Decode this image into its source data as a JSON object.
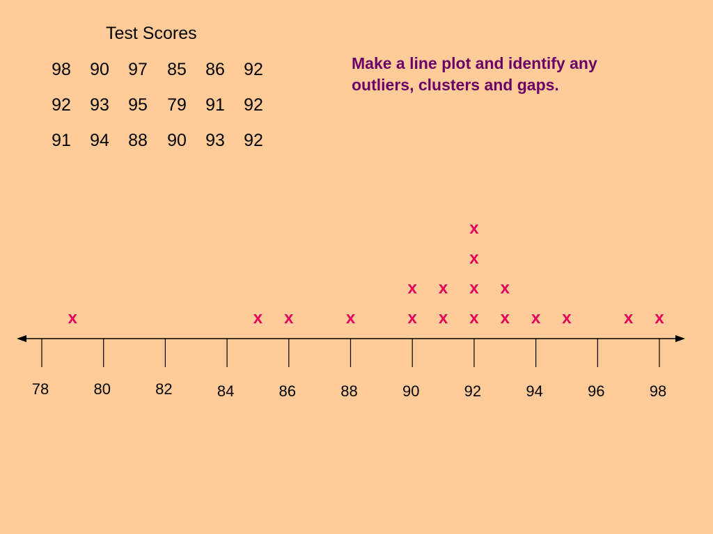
{
  "table": {
    "title": "Test Scores",
    "rows": [
      [
        "98",
        "90",
        "97",
        "85",
        "86",
        "92"
      ],
      [
        "92",
        "93",
        "95",
        "79",
        "91",
        "92"
      ],
      [
        "91",
        "94",
        "88",
        "90",
        "93",
        "92"
      ]
    ]
  },
  "prompt": "Make a line plot and identify any outliers, clusters and gaps.",
  "chart_data": {
    "type": "scatter",
    "subtype": "line plot (dot plot)",
    "marker": "x",
    "marker_color": "#E6005C",
    "axis_line_color": "#000000",
    "xlim": [
      78,
      98
    ],
    "ticks": [
      78,
      80,
      82,
      84,
      86,
      88,
      90,
      92,
      94,
      96,
      98
    ],
    "tick_labels": [
      "78",
      "80",
      "82",
      "84",
      "86",
      "88",
      "90",
      "92",
      "94",
      "96",
      "98"
    ],
    "points": [
      {
        "x": 79,
        "count": 1
      },
      {
        "x": 85,
        "count": 1
      },
      {
        "x": 86,
        "count": 1
      },
      {
        "x": 88,
        "count": 1
      },
      {
        "x": 90,
        "count": 2
      },
      {
        "x": 91,
        "count": 2
      },
      {
        "x": 92,
        "count": 4
      },
      {
        "x": 93,
        "count": 2
      },
      {
        "x": 94,
        "count": 1
      },
      {
        "x": 95,
        "count": 1
      },
      {
        "x": 97,
        "count": 1
      },
      {
        "x": 98,
        "count": 1
      }
    ]
  }
}
